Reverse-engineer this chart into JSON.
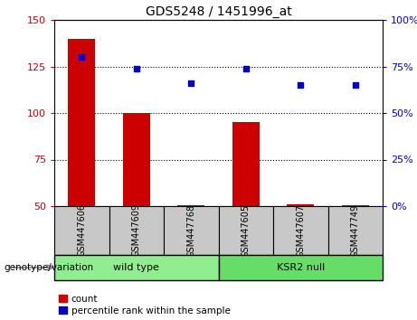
{
  "title": "GDS5248 / 1451996_at",
  "samples": [
    "GSM447606",
    "GSM447609",
    "GSM447768",
    "GSM447605",
    "GSM447607",
    "GSM447749"
  ],
  "count_values": [
    140,
    100,
    50.5,
    95,
    51,
    50.5
  ],
  "percentile_values": [
    80,
    74,
    66,
    74,
    65,
    65
  ],
  "ylim_left": [
    50,
    150
  ],
  "ylim_right": [
    0,
    100
  ],
  "yticks_left": [
    50,
    75,
    100,
    125,
    150
  ],
  "yticks_right": [
    0,
    25,
    50,
    75,
    100
  ],
  "bar_color": "#cc0000",
  "dot_color": "#0000cc",
  "bar_bottom": 50,
  "group_label": "genotype/variation",
  "legend_count_label": "count",
  "legend_percentile_label": "percentile rank within the sample",
  "sample_box_color": "#c8c8c8",
  "title_fontsize": 10,
  "tick_fontsize": 8,
  "bar_width": 0.5,
  "wt_color": "#90ee90",
  "ksr_color": "#66dd66"
}
